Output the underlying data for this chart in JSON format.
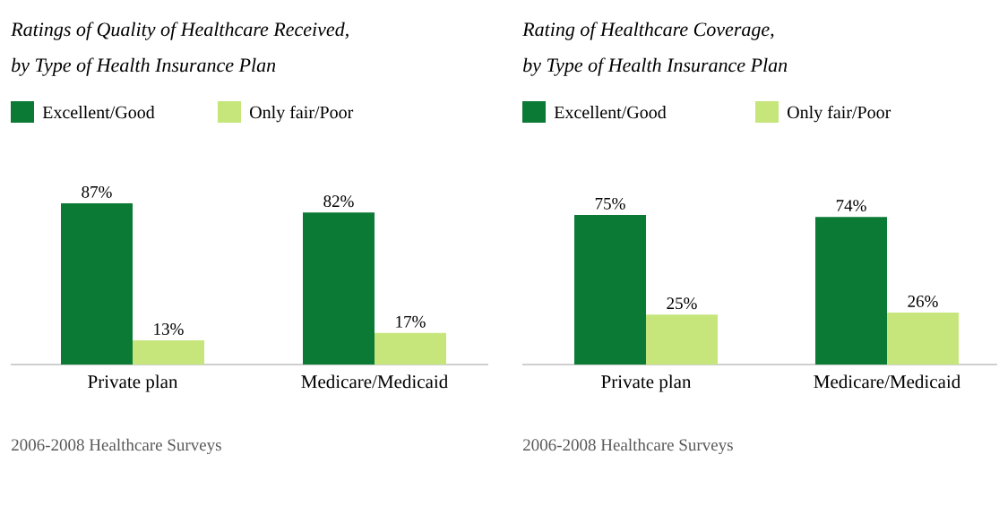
{
  "chart_data": [
    {
      "type": "bar",
      "title": "Ratings of Quality of Healthcare Received,",
      "subtitle": "by Type of Health Insurance Plan",
      "categories": [
        "Private plan",
        "Medicare/Medicaid"
      ],
      "legend": "top left",
      "annotations": [
        "2006-2008 Healthcare Surveys"
      ],
      "series": [
        {
          "name": "Excellent/Good",
          "color": "#0a7a34",
          "values": [
            87,
            82
          ],
          "value_labels": [
            "87%",
            "82%"
          ]
        },
        {
          "name": "Only fair/Poor",
          "color": "#c6e67c",
          "values": [
            13,
            17
          ],
          "value_labels": [
            "13%",
            "17%"
          ]
        }
      ]
    },
    {
      "type": "bar",
      "title": "Rating of Healthcare Coverage,",
      "subtitle": "by Type of Health Insurance Plan",
      "categories": [
        "Private plan",
        "Medicare/Medicaid"
      ],
      "legend": "top left",
      "annotations": [
        "2006-2008 Healthcare Surveys"
      ],
      "series": [
        {
          "name": "Excellent/Good",
          "color": "#0a7a34",
          "values": [
            75,
            74
          ],
          "value_labels": [
            "75%",
            "74%"
          ]
        },
        {
          "name": "Only fair/Poor",
          "color": "#c6e67c",
          "values": [
            25,
            26
          ],
          "value_labels": [
            "25%",
            "26%"
          ]
        }
      ]
    }
  ]
}
